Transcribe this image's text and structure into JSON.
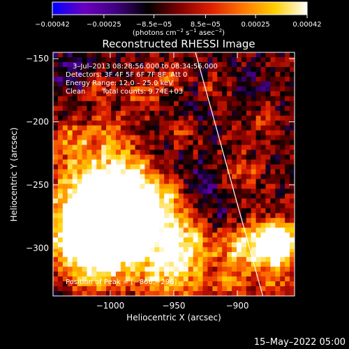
{
  "chart_data": {
    "type": "heatmap",
    "title": "Reconstructed RHESSI Image",
    "xlabel": "Heliocentric X (arcsec)",
    "ylabel": "Heliocentric Y (arcsec)",
    "xlim": [
      -1045,
      -855
    ],
    "ylim": [
      -338,
      -145
    ],
    "x_ticks": [
      {
        "value": -1000,
        "label": "−1000"
      },
      {
        "value": -950,
        "label": "−950"
      },
      {
        "value": -900,
        "label": "−900"
      }
    ],
    "y_ticks": [
      {
        "value": -150,
        "label": "−150"
      },
      {
        "value": -200,
        "label": "−200"
      },
      {
        "value": -250,
        "label": "−250"
      },
      {
        "value": -300,
        "label": "−300"
      }
    ],
    "colorbar": {
      "min": -0.00042,
      "max": 0.00042,
      "tick_values": [
        -0.00042,
        -0.00025,
        -8.5e-05,
        8.5e-05,
        0.00025,
        0.00042
      ],
      "tick_labels": [
        "−0.00042",
        "−0.00025",
        "−8.5e−05",
        "8.5e−05",
        "0.00025",
        "0.00042"
      ],
      "unit_label_parts": [
        "(photons cm",
        "−2",
        " s",
        "−1",
        " asec",
        "−2",
        ")"
      ],
      "colors": [
        "#0000ff",
        "#6a00c0",
        "#400080",
        "#000000",
        "#800000",
        "#e02000",
        "#ff7800",
        "#ffd000",
        "#ffffff"
      ]
    },
    "annotations": {
      "time_range": "3–Jul–2013 08:28:56.000 to 08:34:56.000",
      "detectors": "Detectors: 3F 4F 5F 6F 7F 8F, Att 0",
      "energy_range": "Energy Range: 12.0 – 25.0 keV",
      "algorithm": "Clean",
      "total_counts": "Total counts: 9.74E+03",
      "peak_position": "Position of Peak = [−866,−296]"
    },
    "limb_line": [
      [
        -933,
        -145
      ],
      [
        -880,
        -338
      ]
    ],
    "grid": false,
    "hot_spots": [
      {
        "x": -1024,
        "y": -290,
        "r": 22,
        "v": 0.00042
      },
      {
        "x": -1015,
        "y": -255,
        "r": 20,
        "v": 0.0004
      },
      {
        "x": -1005,
        "y": -310,
        "r": 20,
        "v": 0.00035
      },
      {
        "x": -990,
        "y": -270,
        "r": 18,
        "v": 0.00038
      },
      {
        "x": -985,
        "y": -240,
        "r": 16,
        "v": 0.0003
      },
      {
        "x": -1030,
        "y": -215,
        "r": 12,
        "v": 0.00025
      },
      {
        "x": -1000,
        "y": -210,
        "r": 10,
        "v": 0.00022
      },
      {
        "x": -970,
        "y": -290,
        "r": 20,
        "v": 0.0003
      },
      {
        "x": -950,
        "y": -320,
        "r": 18,
        "v": 0.00032
      },
      {
        "x": -960,
        "y": -260,
        "r": 14,
        "v": 0.00025
      },
      {
        "x": -940,
        "y": -295,
        "r": 14,
        "v": 0.00026
      },
      {
        "x": -945,
        "y": -210,
        "r": 9,
        "v": 0.00018
      },
      {
        "x": -975,
        "y": -180,
        "r": 9,
        "v": 0.0002
      },
      {
        "x": -1010,
        "y": -175,
        "r": 8,
        "v": 0.00018
      },
      {
        "x": -955,
        "y": -165,
        "r": 8,
        "v": 0.00016
      },
      {
        "x": -900,
        "y": -300,
        "r": 14,
        "v": 0.0003
      },
      {
        "x": -875,
        "y": -300,
        "r": 13,
        "v": 0.00036
      },
      {
        "x": -866,
        "y": -296,
        "r": 12,
        "v": 0.00042
      },
      {
        "x": -895,
        "y": -240,
        "r": 10,
        "v": 0.00018
      },
      {
        "x": -880,
        "y": -200,
        "r": 8,
        "v": 0.00014
      },
      {
        "x": -905,
        "y": -330,
        "r": 9,
        "v": 0.00022
      },
      {
        "x": -870,
        "y": -330,
        "r": 8,
        "v": 0.0002
      },
      {
        "x": -920,
        "y": -175,
        "r": 7,
        "v": 0.00012
      }
    ],
    "cold_spots": [
      {
        "x": -1030,
        "y": -160,
        "r": 14,
        "v": -0.00012
      },
      {
        "x": -960,
        "y": -230,
        "r": 14,
        "v": -0.0001
      },
      {
        "x": -930,
        "y": -250,
        "r": 12,
        "v": -0.00012
      },
      {
        "x": -915,
        "y": -275,
        "r": 10,
        "v": -0.00012
      },
      {
        "x": -1000,
        "y": -330,
        "r": 10,
        "v": -0.0001
      },
      {
        "x": -890,
        "y": -170,
        "r": 10,
        "v": -8e-05
      },
      {
        "x": -930,
        "y": -190,
        "r": 9,
        "v": -9e-05
      },
      {
        "x": -1040,
        "y": -330,
        "r": 8,
        "v": -9e-05
      }
    ]
  },
  "footer": {
    "timestamp": "15–May–2022 05:00"
  }
}
